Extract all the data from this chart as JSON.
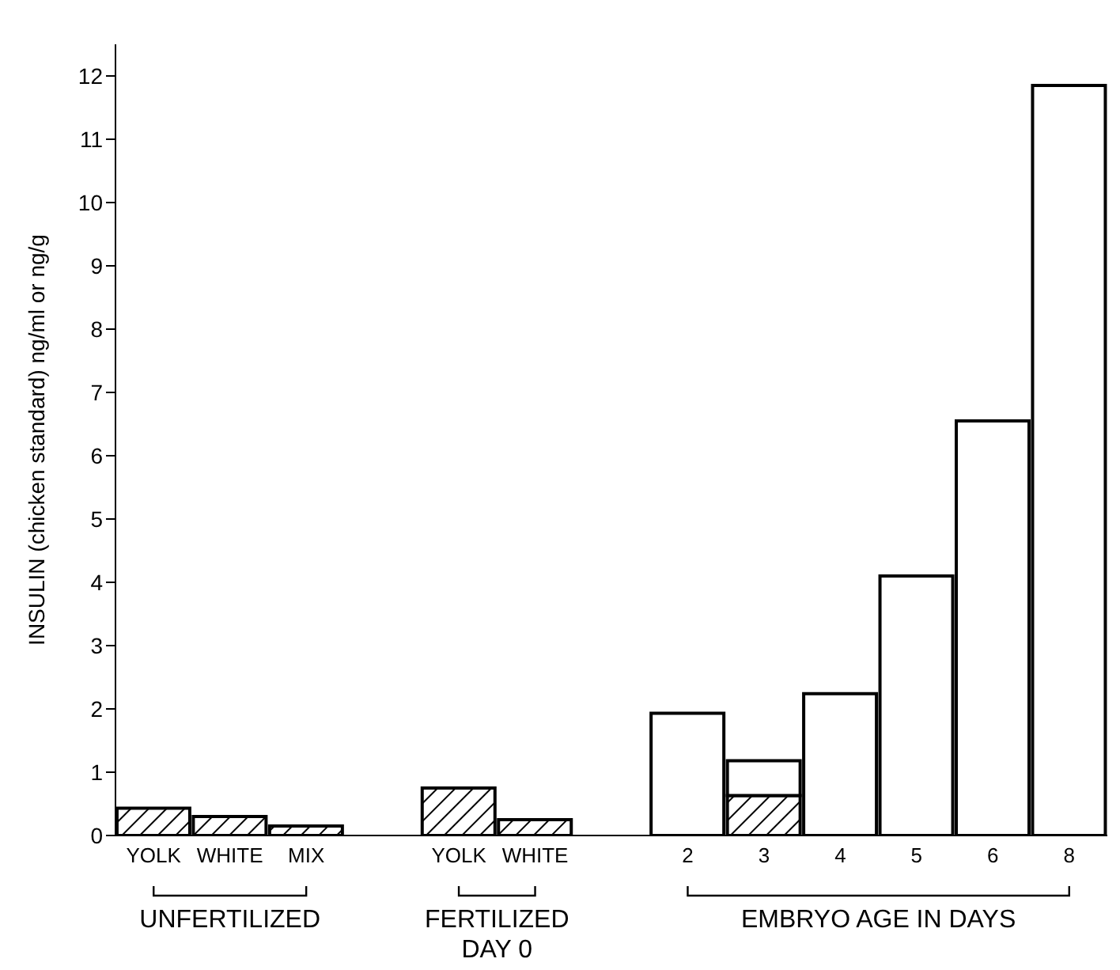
{
  "chart_data": {
    "type": "bar",
    "stacked": true,
    "ylabel": "INSULIN (chicken standard) ng/ml or ng/g",
    "categories": [
      "YOLK",
      "WHITE",
      "MIX",
      null,
      "YOLK",
      "WHITE",
      null,
      "2",
      "3",
      "4",
      "5",
      "6",
      "8"
    ],
    "series": [
      {
        "colors": [
          "#000000",
          "#000000",
          "#000000",
          null,
          "#000000",
          "#000000",
          null,
          null,
          "#000000",
          null,
          null,
          null,
          null
        ],
        "values": [
          0.43,
          0.3,
          0.15,
          null,
          0.75,
          0.25,
          null,
          null,
          0.63,
          null,
          null,
          null,
          null
        ]
      },
      {
        "color": "#ffffff",
        "values": [
          null,
          null,
          null,
          null,
          null,
          null,
          null,
          1.93,
          0.55,
          2.24,
          4.1,
          6.55,
          11.85
        ]
      }
    ],
    "ylim": [
      0,
      12.5
    ],
    "yticks": [
      0,
      1,
      2,
      3,
      4,
      5,
      6,
      7,
      8,
      9,
      10,
      11,
      12
    ],
    "annotations": [
      "UNFERTILIZED",
      "FERTILIZED DAY 0",
      "EMBRYO AGE IN DAYS"
    ]
  }
}
